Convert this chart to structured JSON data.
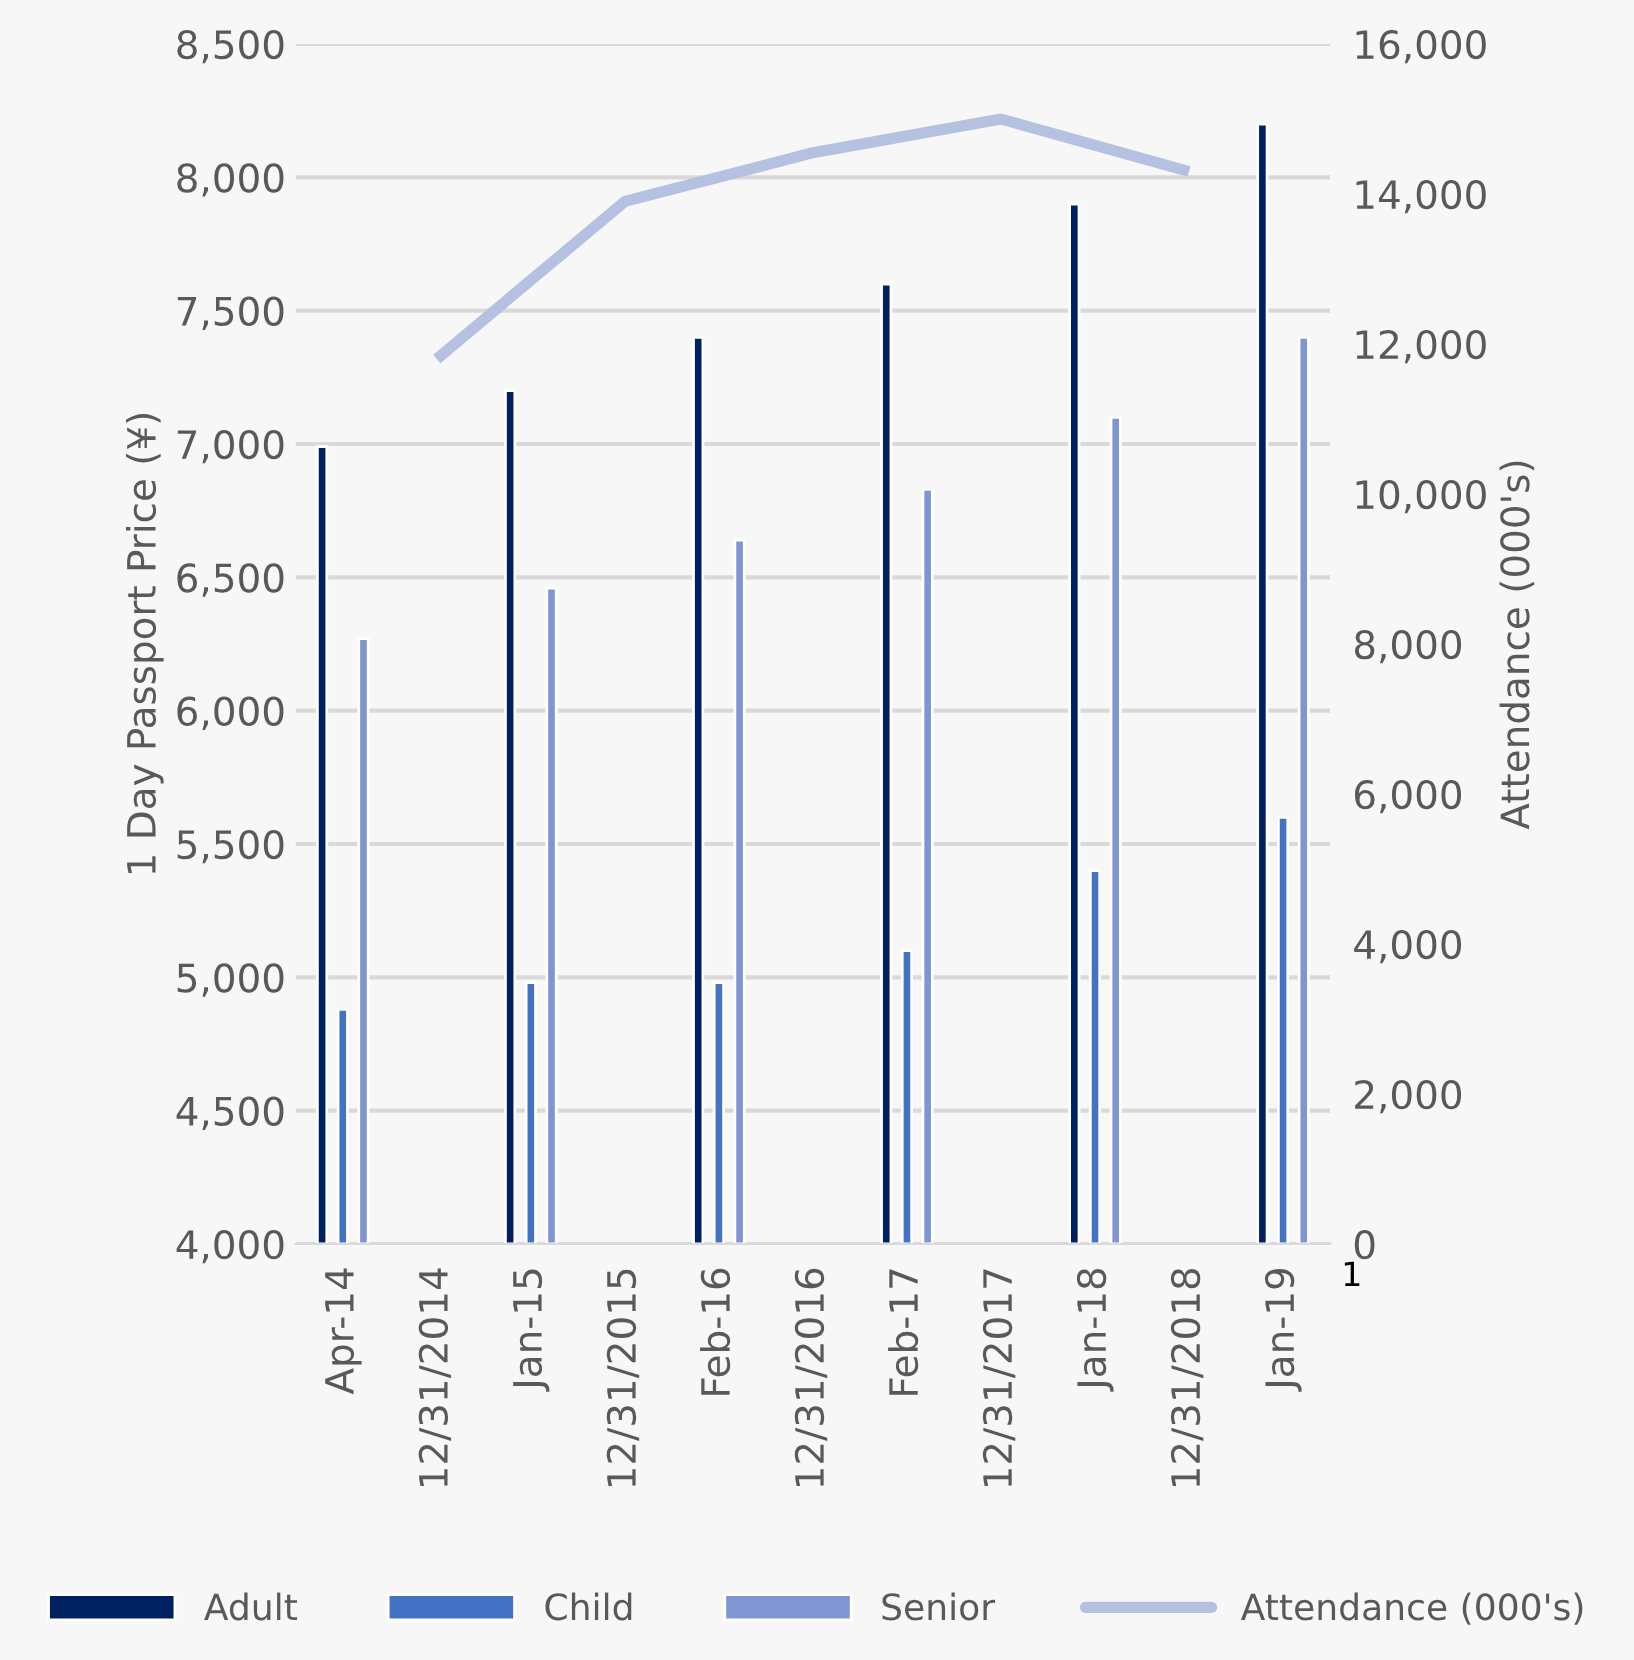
{
  "chart_data": {
    "type": "bar",
    "categories": [
      "Apr-14",
      "12/31/2014",
      "Jan-15",
      "12/31/2015",
      "Feb-16",
      "12/31/2016",
      "Feb-17",
      "12/31/2017",
      "Jan-18",
      "12/31/2018",
      "Jan-19"
    ],
    "series": [
      {
        "name": "Adult",
        "color": "#002060",
        "values": [
          6990,
          null,
          7200,
          null,
          7400,
          null,
          7600,
          null,
          7900,
          null,
          8200
        ]
      },
      {
        "name": "Child",
        "color": "#4472c4",
        "values": [
          4880,
          null,
          4980,
          null,
          4980,
          null,
          5100,
          null,
          5400,
          null,
          5600
        ]
      },
      {
        "name": "Senior",
        "color": "#7f96d2",
        "values": [
          6270,
          null,
          6460,
          null,
          6640,
          null,
          6830,
          null,
          7100,
          null,
          7400
        ]
      },
      {
        "name": "Attendance (000's)",
        "type": "line",
        "axis": "y2",
        "color": "#b4c1e1",
        "values": [
          null,
          11800,
          null,
          13900,
          null,
          14550,
          null,
          15000,
          null,
          14300,
          null
        ]
      }
    ],
    "ylabel": "1 Day Passport Price (¥)",
    "y2label": "Attendance (000's)",
    "ylim": [
      4000,
      8500
    ],
    "yticks": [
      {
        "value": 4000,
        "label": "4,000"
      },
      {
        "value": 4500,
        "label": "4,500"
      },
      {
        "value": 5000,
        "label": "5,000"
      },
      {
        "value": 5500,
        "label": "5,500"
      },
      {
        "value": 6000,
        "label": "6,000"
      },
      {
        "value": 6500,
        "label": "6,500"
      },
      {
        "value": 7000,
        "label": "7,000"
      },
      {
        "value": 7500,
        "label": "7,500"
      },
      {
        "value": 8000,
        "label": "8,000"
      },
      {
        "value": 8500,
        "label": "8,500"
      }
    ],
    "y2lim": [
      0,
      16000
    ],
    "y2ticks": [
      0,
      {
        "value": 2000,
        "label": "2,000"
      },
      {
        "value": 4000,
        "label": "4,000"
      },
      {
        "value": 6000,
        "label": "6,000"
      },
      {
        "value": 8000,
        "label": "8,000"
      },
      {
        "value": 10000,
        "label": "10,000"
      },
      {
        "value": 12000,
        "label": "12,000"
      },
      {
        "value": 14000,
        "label": "14,000"
      },
      {
        "value": 16000,
        "label": "16,000"
      }
    ],
    "annotations": [
      "1"
    ],
    "grid": "y",
    "legend": "bottom",
    "line_style": "solid"
  }
}
